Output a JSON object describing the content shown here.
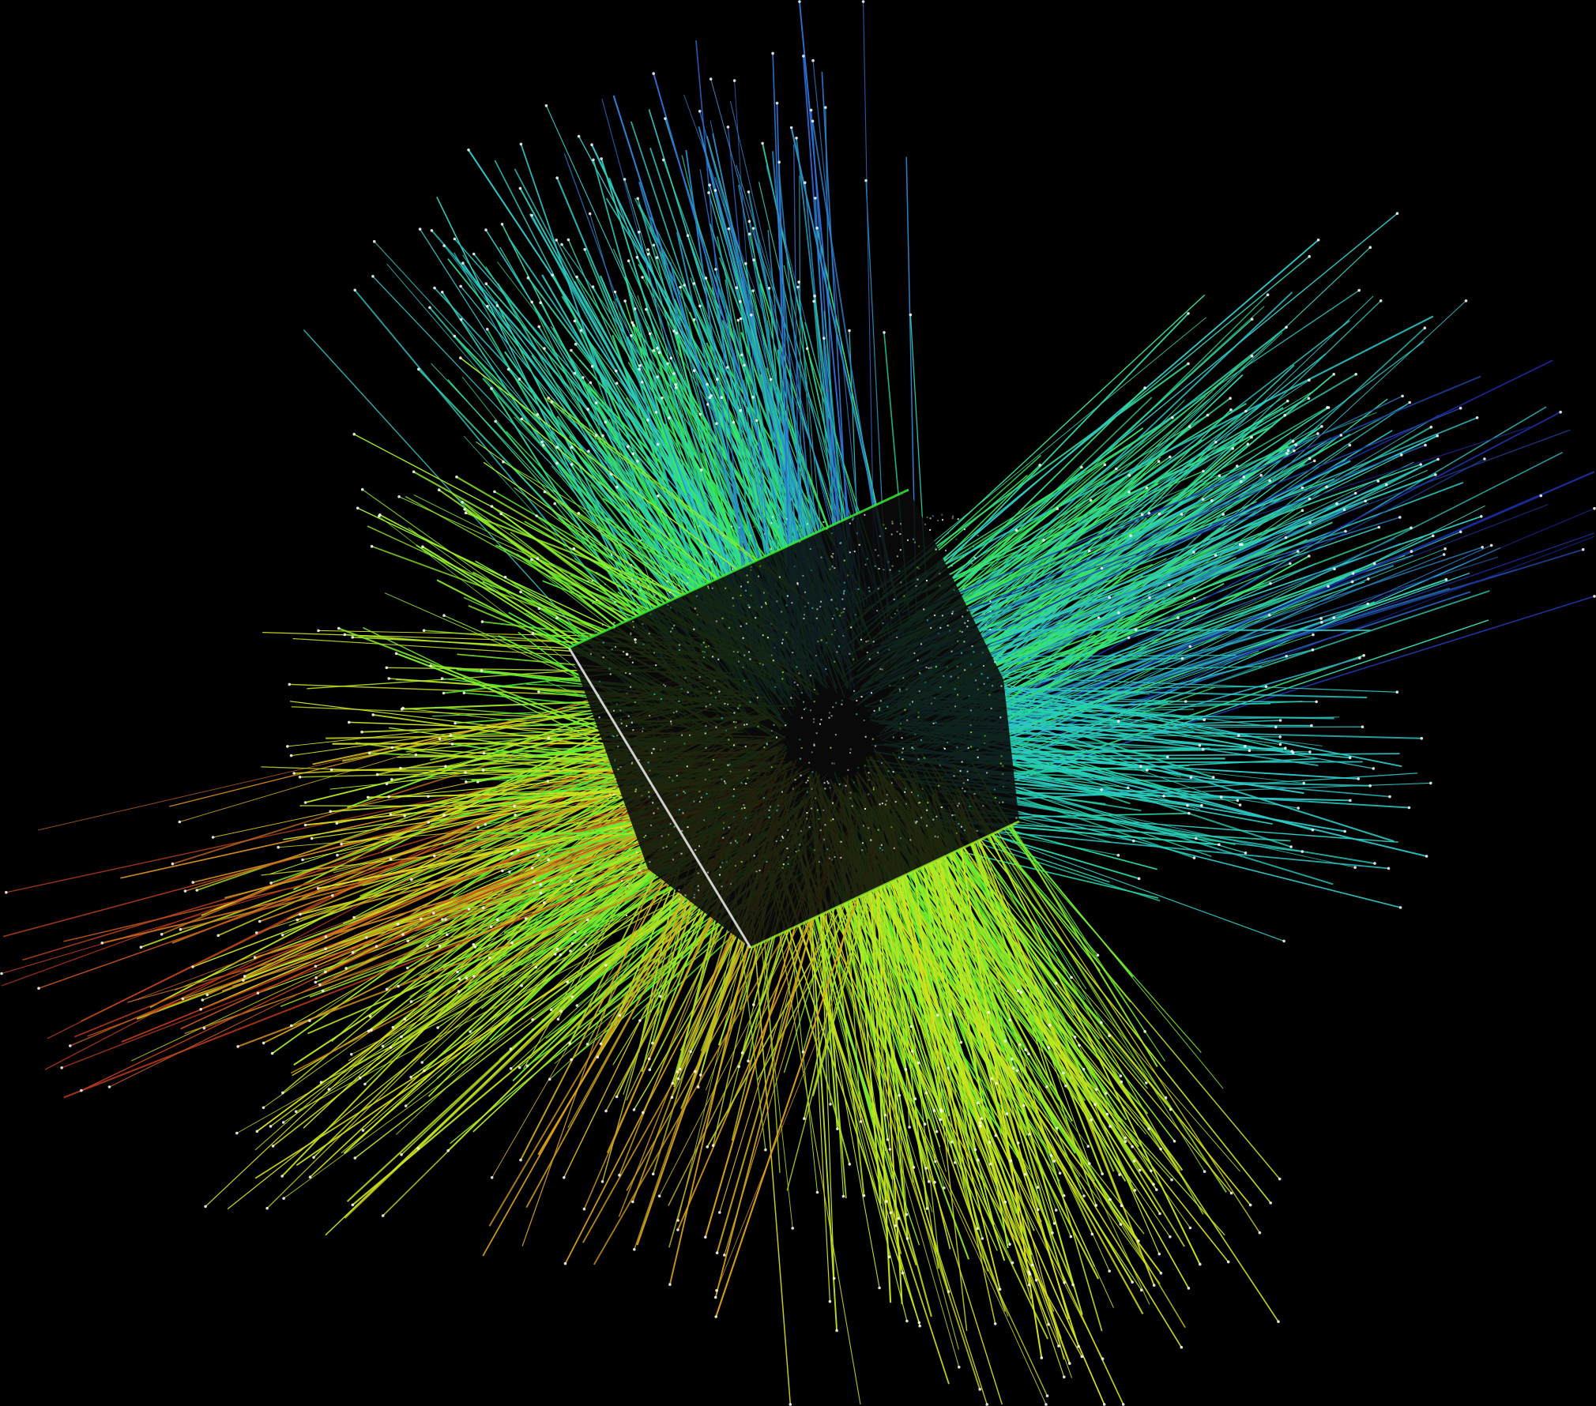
{
  "scene": {
    "background_color": "#000000",
    "visualization": "radiating-line-field",
    "palette": {
      "deep_blue": "#1a2a9a",
      "blue": "#2f6fd6",
      "cyan": "#2ec9c9",
      "teal": "#22d6a0",
      "green": "#3df23a",
      "lime": "#9ef02a",
      "yellow": "#d8e21c",
      "orange": "#d8a01c",
      "red": "#c03a1a",
      "endpoint": "#ffffff",
      "core": "#0a0a0a"
    },
    "icons": {
      "endpoint_marker": "dot-icon"
    }
  }
}
